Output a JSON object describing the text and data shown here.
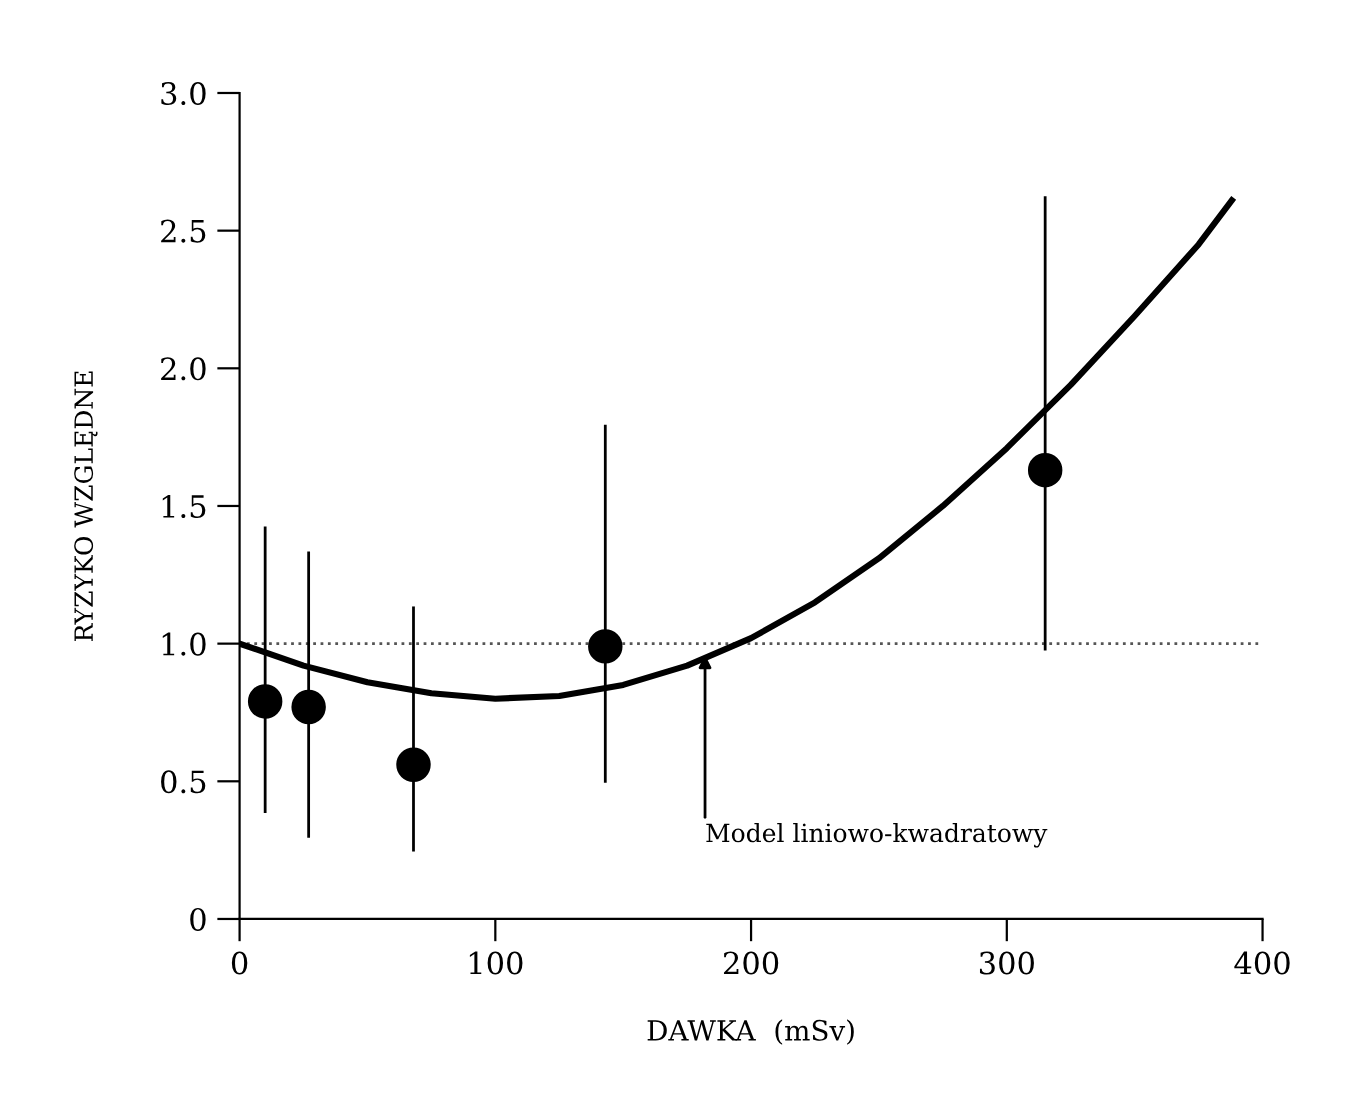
{
  "chart_data": {
    "type": "scatter",
    "xlabel": "DAWKA  (mSv)",
    "ylabel": "RYZYKO WZGLĘDNE",
    "xlim": [
      0,
      400
    ],
    "xticks": [
      0,
      100,
      200,
      300,
      400
    ],
    "ylim": [
      0,
      3.0
    ],
    "yticks": [
      {
        "value": 0,
        "label": "0"
      },
      {
        "value": 0.5,
        "label": "0.5"
      },
      {
        "value": 1.0,
        "label": "1.0"
      },
      {
        "value": 1.5,
        "label": "1.5"
      },
      {
        "value": 2.0,
        "label": "2.0"
      },
      {
        "value": 2.5,
        "label": "2.5"
      },
      {
        "value": 3.0,
        "label": "3.0"
      }
    ],
    "grid": false,
    "series": [
      {
        "marker": "circle",
        "color": "#000000",
        "x": [
          10,
          27,
          68,
          143,
          315
        ],
        "values": [
          0.79,
          0.77,
          0.56,
          0.99,
          1.63
        ],
        "errors": [
          [
            0.39,
            1.42
          ],
          [
            0.3,
            1.33
          ],
          [
            0.25,
            1.13
          ],
          [
            0.5,
            1.79
          ],
          [
            0.98,
            2.62
          ]
        ]
      },
      {
        "type": "line",
        "color": "#000000",
        "marker": "none",
        "line_style": "solid",
        "x": [
          0,
          25,
          50,
          75,
          100,
          125,
          150,
          175,
          200,
          225,
          250,
          275,
          300,
          325,
          350,
          375,
          388
        ],
        "values": [
          1.0,
          0.92,
          0.86,
          0.82,
          0.8,
          0.81,
          0.85,
          0.92,
          1.02,
          1.15,
          1.31,
          1.5,
          1.71,
          1.94,
          2.19,
          2.45,
          2.61
        ]
      }
    ],
    "ref_lines": [
      {
        "axis": "y",
        "value": 1.0,
        "color": "#555555",
        "line_style": "dotted"
      }
    ],
    "annotations": [
      {
        "text": "Model liniowo-kwadratowy",
        "x": 182,
        "y": 0.96
      }
    ]
  }
}
